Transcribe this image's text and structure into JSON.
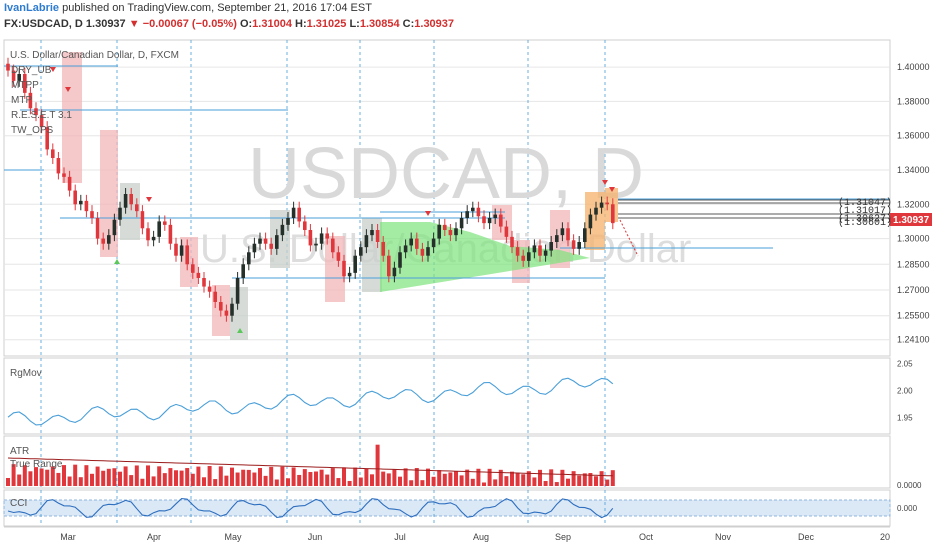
{
  "header": {
    "author": "IvanLabrie",
    "published": "published on TradingView.com, September 21, 2016 17:04 EST",
    "symbol": "FX:USDCAD, D",
    "last": "1.30937",
    "change": "−0.00067 (−0.05%)",
    "open_label": "O:",
    "open": "1.31004",
    "high_label": "H:",
    "high": "1.31025",
    "low_label": "L:",
    "low": "1.30854",
    "close_label": "C:",
    "close": "1.30937"
  },
  "colors": {
    "up": "#26302a",
    "down": "#e0373c",
    "blue": "#4a9fd8",
    "grid": "#e6e6e6",
    "watermark": "#d9d9d9"
  },
  "chart_data": {
    "type": "candlestick",
    "title": "U.S. Dollar/Canadian Dollar, D, FXCM",
    "watermark": "USDCAD, D",
    "watermark_sub": "U.S. Dollar/Canadian Dollar",
    "indicator_labels": [
      "DRY_UB",
      "MTPP",
      "MTP",
      "R.E.S.E.T 3.1",
      "TW_OPS"
    ],
    "ylim": [
      1.235,
      1.41
    ],
    "price_ticks": [
      "1.40000",
      "1.38000",
      "1.36000",
      "1.34000",
      "1.32000",
      "1.30000",
      "1.28500",
      "1.27000",
      "1.25500",
      "1.24100"
    ],
    "price_tick_values": [
      1.4,
      1.38,
      1.36,
      1.34,
      1.32,
      1.3,
      1.285,
      1.27,
      1.255,
      1.241
    ],
    "last_price": "1.30937",
    "box_labels": [
      "(1.31047)",
      "(1.31017)",
      "(1.30627)",
      "(1.30601)"
    ],
    "x_labels": [
      "Mar",
      "Apr",
      "May",
      "Jun",
      "Jul",
      "Aug",
      "Sep",
      "Oct",
      "Nov",
      "Dec",
      "20"
    ],
    "close_series": [
      1.398,
      1.392,
      1.396,
      1.385,
      1.376,
      1.372,
      1.365,
      1.352,
      1.347,
      1.338,
      1.336,
      1.328,
      1.32,
      1.322,
      1.316,
      1.312,
      1.3,
      1.297,
      1.302,
      1.311,
      1.318,
      1.326,
      1.32,
      1.316,
      1.306,
      1.299,
      1.301,
      1.31,
      1.308,
      1.297,
      1.29,
      1.296,
      1.285,
      1.28,
      1.277,
      1.272,
      1.269,
      1.263,
      1.258,
      1.255,
      1.262,
      1.277,
      1.285,
      1.292,
      1.297,
      1.3,
      1.297,
      1.294,
      1.302,
      1.308,
      1.312,
      1.318,
      1.31,
      1.305,
      1.296,
      1.297,
      1.303,
      1.3,
      1.292,
      1.287,
      1.278,
      1.28,
      1.29,
      1.295,
      1.302,
      1.305,
      1.298,
      1.29,
      1.278,
      1.283,
      1.292,
      1.296,
      1.3,
      1.294,
      1.29,
      1.295,
      1.3,
      1.308,
      1.305,
      1.302,
      1.306,
      1.312,
      1.316,
      1.318,
      1.313,
      1.309,
      1.312,
      1.314,
      1.307,
      1.301,
      1.295,
      1.29,
      1.287,
      1.292,
      1.296,
      1.29,
      1.293,
      1.298,
      1.302,
      1.306,
      1.299,
      1.294,
      1.298,
      1.306,
      1.314,
      1.318,
      1.321,
      1.32,
      1.309
    ],
    "rgmov": {
      "label": "RgMov",
      "ticks": [
        "2.05",
        "2.00",
        "1.95"
      ],
      "tick_values": [
        2.05,
        2.0,
        1.95
      ],
      "ylim": [
        1.92,
        2.06
      ]
    },
    "atr": {
      "label": "ATR",
      "label2": "True Range",
      "ticks": [
        "0.0000"
      ]
    },
    "cci": {
      "label": "CCI",
      "ticks": [
        "0.000"
      ]
    }
  }
}
